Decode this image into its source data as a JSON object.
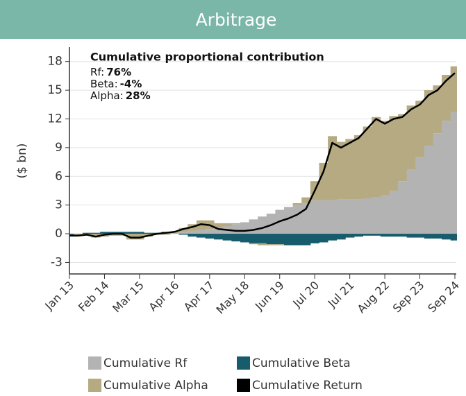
{
  "chart_data": {
    "type": "stacked_area_line",
    "title": "Arbitrage",
    "y_label": "($ bn)",
    "annotation": {
      "title": "Cumulative proportional contribution",
      "items": [
        {
          "label": "Rf:",
          "value": "76%"
        },
        {
          "label": "Beta:",
          "value": "-4%"
        },
        {
          "label": "Alpha:",
          "value": "28%"
        }
      ]
    },
    "categories": [
      "Jan 13",
      null,
      null,
      null,
      "Feb 14",
      null,
      null,
      null,
      "Mar 15",
      null,
      null,
      null,
      "Apr 16",
      null,
      null,
      null,
      "Apr 17",
      null,
      null,
      null,
      "May 18",
      null,
      null,
      null,
      "Jun 19",
      null,
      null,
      null,
      "Jul 20",
      null,
      null,
      null,
      "Jul 21",
      null,
      null,
      null,
      "Aug 22",
      null,
      null,
      null,
      "Sep 23",
      null,
      null,
      null,
      "Sep 24"
    ],
    "series": [
      {
        "name": "Cumulative Rf",
        "color": "#b3b3b3",
        "kind": "area",
        "values": [
          0,
          0,
          0,
          0,
          0,
          0,
          0,
          0,
          0,
          0,
          0,
          0.1,
          0.1,
          0.2,
          0.3,
          0.4,
          0.5,
          0.6,
          0.8,
          1.0,
          1.2,
          1.5,
          1.8,
          2.1,
          2.5,
          2.8,
          3.0,
          3.2,
          3.5,
          3.5,
          3.5,
          3.6,
          3.6,
          3.6,
          3.7,
          3.8,
          4.0,
          4.5,
          5.5,
          6.7,
          8.0,
          9.2,
          10.5,
          11.8,
          12.7
        ]
      },
      {
        "name": "Cumulative Beta",
        "color": "#175c6c",
        "kind": "area",
        "values": [
          -0.1,
          0,
          0.1,
          0.1,
          0.2,
          0.2,
          0.2,
          0.2,
          0.2,
          0.1,
          0.1,
          0.1,
          0,
          -0.1,
          -0.3,
          -0.4,
          -0.5,
          -0.6,
          -0.7,
          -0.8,
          -0.9,
          -1.0,
          -1.0,
          -1.1,
          -1.1,
          -1.2,
          -1.2,
          -1.2,
          -1.0,
          -0.9,
          -0.7,
          -0.6,
          -0.4,
          -0.3,
          -0.2,
          -0.2,
          -0.3,
          -0.3,
          -0.3,
          -0.4,
          -0.4,
          -0.5,
          -0.5,
          -0.6,
          -0.7
        ]
      },
      {
        "name": "Cumulative Alpha",
        "color": "#b5aa82",
        "kind": "area",
        "values": [
          -0.1,
          -0.2,
          -0.2,
          -0.4,
          -0.3,
          -0.2,
          -0.2,
          -0.6,
          -0.6,
          -0.3,
          -0.1,
          -0.1,
          0.1,
          0.4,
          0.7,
          1.0,
          0.9,
          0.5,
          0.3,
          0.1,
          0,
          -0.1,
          -0.2,
          -0.1,
          -0.1,
          0,
          0.2,
          0.6,
          2.0,
          3.9,
          6.7,
          6.0,
          6.3,
          6.7,
          7.5,
          8.4,
          7.8,
          7.8,
          7.0,
          6.7,
          5.9,
          5.8,
          5.0,
          4.8,
          4.8
        ]
      },
      {
        "name": "Cumulative Return",
        "color": "#000000",
        "kind": "line",
        "values": [
          -0.2,
          -0.2,
          -0.1,
          -0.3,
          -0.1,
          0,
          0,
          -0.4,
          -0.4,
          -0.2,
          0,
          0.1,
          0.2,
          0.5,
          0.7,
          1.0,
          0.9,
          0.5,
          0.4,
          0.3,
          0.3,
          0.4,
          0.6,
          0.9,
          1.3,
          1.6,
          2.0,
          2.6,
          4.5,
          6.5,
          9.5,
          9.0,
          9.5,
          10.0,
          11.0,
          12.0,
          11.5,
          12.0,
          12.2,
          13.0,
          13.5,
          14.5,
          15.0,
          16.0,
          16.8
        ]
      }
    ],
    "ylim": [
      -4.2,
      19.5
    ],
    "yticks": [
      -3,
      0,
      3,
      6,
      9,
      12,
      15,
      18
    ],
    "grid": true
  }
}
